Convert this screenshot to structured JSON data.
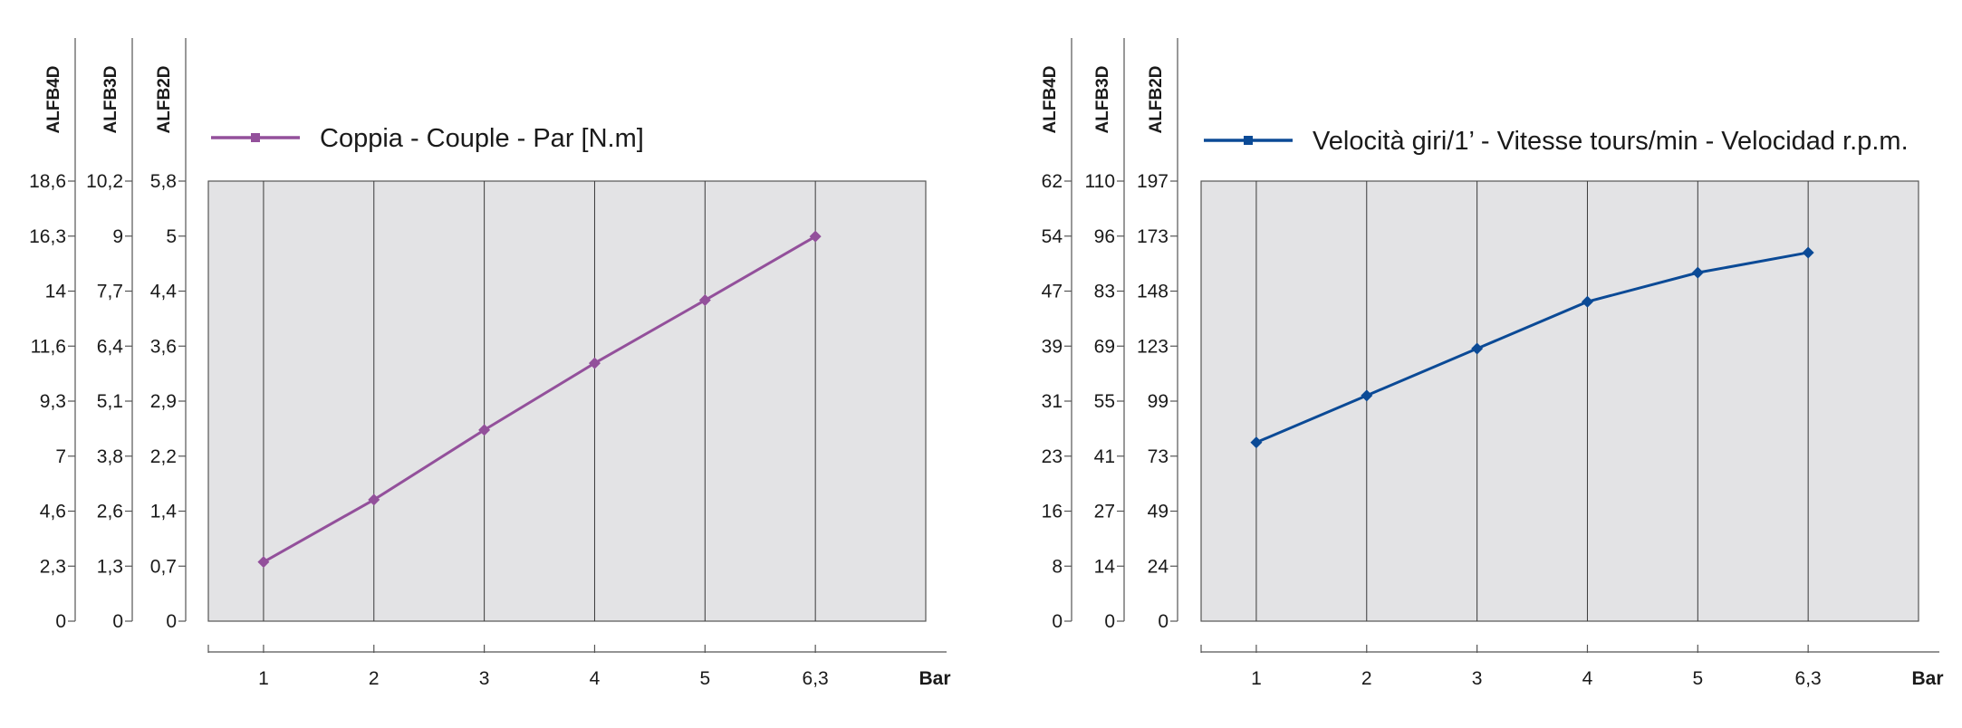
{
  "chart_data": [
    {
      "type": "line",
      "legend": "Coppia - Couple - Par [N.m]",
      "x_unit_label": "Bar",
      "categories": [
        "1",
        "2",
        "3",
        "4",
        "5",
        "6,3"
      ],
      "y_axes": [
        {
          "name": "ALFB4D",
          "ticks": [
            "0",
            "2,3",
            "4,6",
            "7",
            "9,3",
            "11,6",
            "14",
            "16,3",
            "18,6"
          ],
          "ylim": [
            0,
            18.6
          ]
        },
        {
          "name": "ALFB3D",
          "ticks": [
            "0",
            "1,3",
            "2,6",
            "3,8",
            "5,1",
            "6,4",
            "7,7",
            "9",
            "10,2"
          ],
          "ylim": [
            0,
            10.2
          ]
        },
        {
          "name": "ALFB2D",
          "ticks": [
            "0",
            "0,7",
            "1,4",
            "2,2",
            "2,9",
            "3,6",
            "4,4",
            "5",
            "5,8"
          ],
          "ylim": [
            0,
            5.8
          ]
        }
      ],
      "series": [
        {
          "name": "Coppia - Couple - Par [N.m]",
          "color": "#93509b",
          "axis": "ALFB2D",
          "values": [
            0.78,
            1.6,
            2.52,
            3.4,
            4.23,
            5.07
          ]
        }
      ],
      "grid": true,
      "legend_position": "top-left"
    },
    {
      "type": "line",
      "legend": "Velocità giri/1’ - Vitesse tours/min - Velocidad r.p.m.",
      "x_unit_label": "Bar",
      "categories": [
        "1",
        "2",
        "3",
        "4",
        "5",
        "6,3"
      ],
      "y_axes": [
        {
          "name": "ALFB4D",
          "ticks": [
            "0",
            "8",
            "16",
            "23",
            "31",
            "39",
            "47",
            "54",
            "62"
          ],
          "ylim": [
            0,
            62
          ]
        },
        {
          "name": "ALFB3D",
          "ticks": [
            "0",
            "14",
            "27",
            "41",
            "55",
            "69",
            "83",
            "96",
            "110"
          ],
          "ylim": [
            0,
            110
          ]
        },
        {
          "name": "ALFB2D",
          "ticks": [
            "0",
            "24",
            "49",
            "73",
            "99",
            "123",
            "148",
            "173",
            "197"
          ],
          "ylim": [
            0,
            197
          ]
        }
      ],
      "series": [
        {
          "name": "Velocità giri/1’ - Vitesse tours/min - Velocidad r.p.m.",
          "color": "#0b4a96",
          "axis": "ALFB2D",
          "values": [
            80,
            101,
            122,
            143,
            156,
            165
          ]
        }
      ],
      "grid": true,
      "legend_position": "top-left"
    }
  ],
  "colors": {
    "plot_background": "#e3e3e5",
    "axis_line": "#555555",
    "grid_line": "#3a3a3a"
  }
}
